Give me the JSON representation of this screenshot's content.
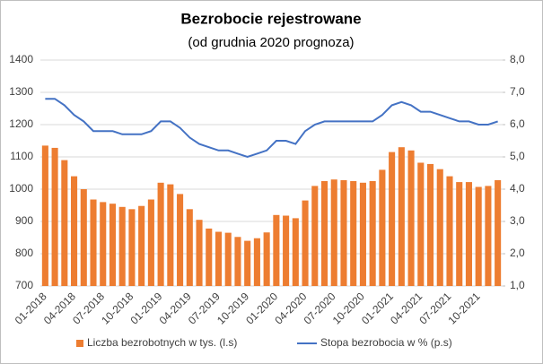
{
  "chart_data": {
    "type": "bar",
    "title": "Bezrobocie rejestrowane",
    "subtitle": "(od grudnia 2020 prognoza)",
    "categories": [
      "01-2018",
      null,
      null,
      "04-2018",
      null,
      null,
      "07-2018",
      null,
      null,
      "10-2018",
      null,
      null,
      "01-2019",
      null,
      null,
      "04-2019",
      null,
      null,
      "07-2019",
      null,
      null,
      "10-2019",
      null,
      null,
      "01-2020",
      null,
      null,
      "04-2020",
      null,
      null,
      "07-2020",
      null,
      null,
      "10-2020",
      null,
      null,
      "01-2021",
      null,
      null,
      "04-2021",
      null,
      null,
      "07-2021",
      null,
      null,
      "10-2021",
      null,
      null
    ],
    "series": [
      {
        "name": "Liczba bezrobotnych w tys. (l.s)",
        "type": "bar",
        "color": "#ed7d31",
        "values": [
          1135,
          1128,
          1090,
          1040,
          1000,
          968,
          960,
          955,
          945,
          938,
          948,
          968,
          1020,
          1015,
          985,
          938,
          905,
          878,
          868,
          865,
          852,
          840,
          848,
          866,
          920,
          918,
          910,
          965,
          1010,
          1025,
          1030,
          1028,
          1025,
          1020,
          1025,
          1060,
          1115,
          1130,
          1120,
          1082,
          1078,
          1062,
          1040,
          1022,
          1022,
          1007,
          1010,
          1028
        ]
      },
      {
        "name": "Stopa bezrobocia w % (p.s)",
        "type": "line",
        "axis": "y2",
        "color": "#4472c4",
        "values": [
          6.8,
          6.8,
          6.6,
          6.3,
          6.1,
          5.8,
          5.8,
          5.8,
          5.7,
          5.7,
          5.7,
          5.8,
          6.1,
          6.1,
          5.9,
          5.6,
          5.4,
          5.3,
          5.2,
          5.2,
          5.1,
          5.0,
          5.1,
          5.2,
          5.5,
          5.5,
          5.4,
          5.8,
          6.0,
          6.1,
          6.1,
          6.1,
          6.1,
          6.1,
          6.1,
          6.3,
          6.6,
          6.7,
          6.6,
          6.4,
          6.4,
          6.3,
          6.2,
          6.1,
          6.1,
          6.0,
          6.0,
          6.1
        ]
      }
    ],
    "ylim": [
      700,
      1400
    ],
    "yticks": [
      700,
      800,
      900,
      1000,
      1100,
      1200,
      1300,
      1400
    ],
    "y2lim": [
      1,
      8
    ],
    "y2ticks": [
      {
        "value": 1,
        "label": "1,0"
      },
      {
        "value": 2,
        "label": "2,0"
      },
      {
        "value": 3,
        "label": "3,0"
      },
      {
        "value": 4,
        "label": "4,0"
      },
      {
        "value": 5,
        "label": "5,0"
      },
      {
        "value": 6,
        "label": "6,0"
      },
      {
        "value": 7,
        "label": "7,0"
      },
      {
        "value": 8,
        "label": "8,0"
      }
    ],
    "grid": true,
    "legend": "bottom"
  }
}
